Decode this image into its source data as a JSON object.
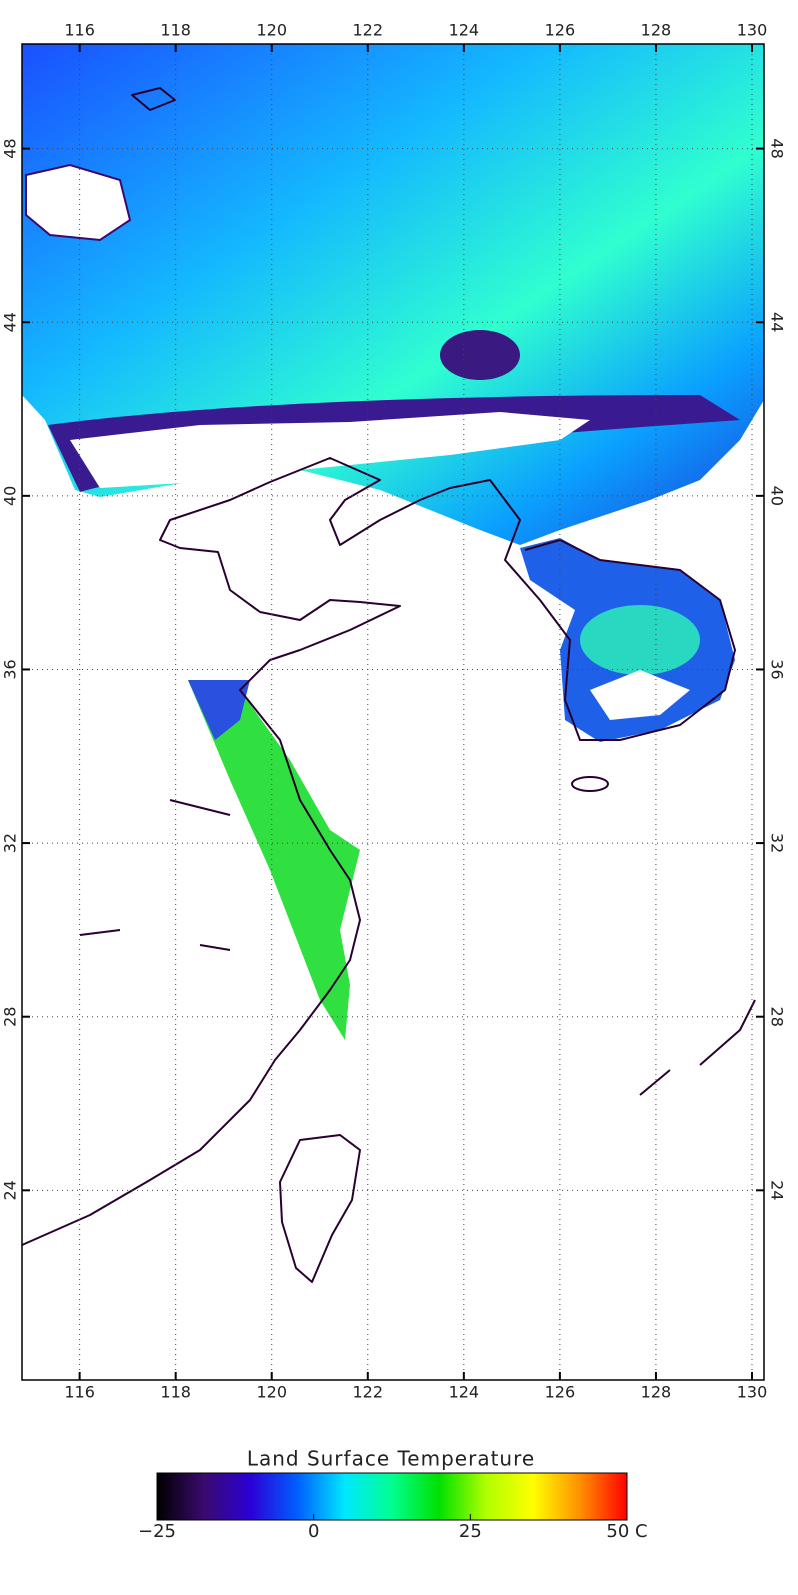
{
  "map": {
    "lon_range": [
      114.8,
      130.25
    ],
    "lat_range": [
      19.63,
      50.41
    ],
    "lon_ticks": [
      116,
      118,
      120,
      122,
      124,
      126,
      128,
      130
    ],
    "lat_ticks": [
      24,
      28,
      32,
      36,
      40,
      44,
      48
    ],
    "grid": true
  },
  "colorbar": {
    "title": "Land Surface Temperature",
    "range": [
      -25,
      50
    ],
    "ticks": [
      {
        "value": -25,
        "label": "−25"
      },
      0,
      25,
      {
        "value": 50,
        "label": "50 C"
      }
    ],
    "colors": [
      "#000000",
      "#3a0a6e",
      "#2b00d8",
      "#0060ff",
      "#00e8ff",
      "#00ff90",
      "#00e000",
      "#b0ff00",
      "#ffff00",
      "#ff9000",
      "#ff0000"
    ]
  }
}
